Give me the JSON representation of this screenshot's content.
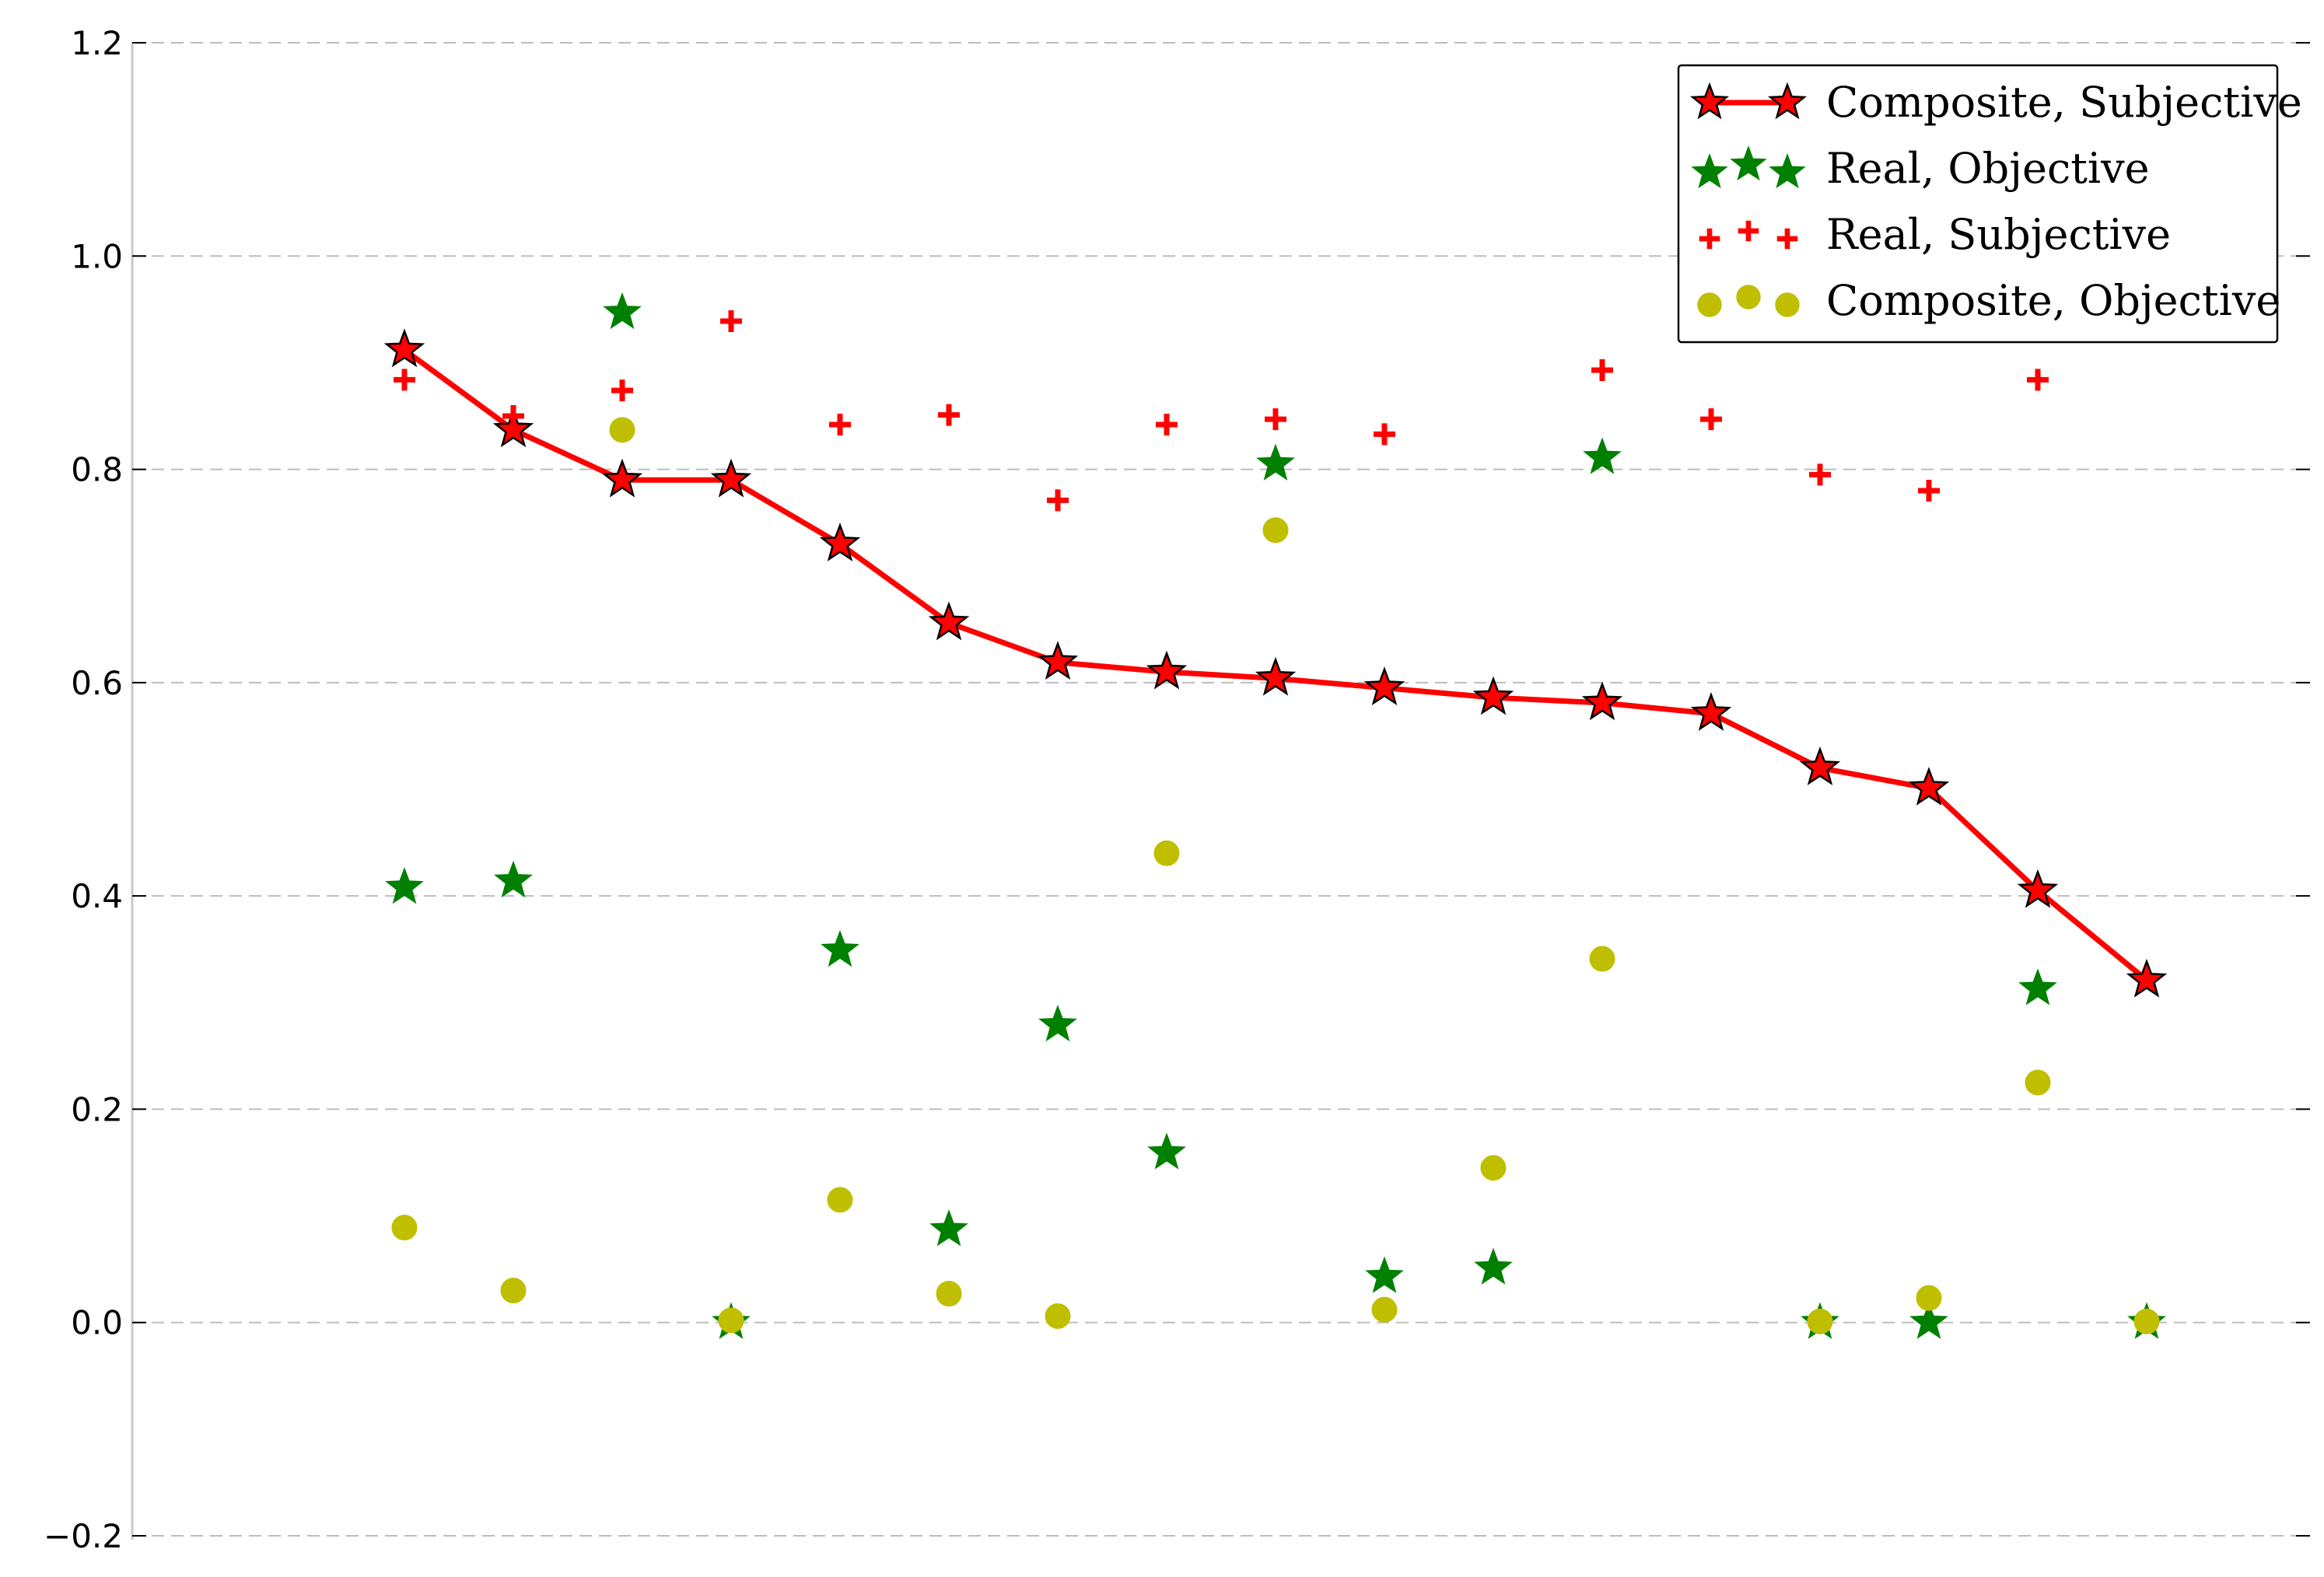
{
  "chart_data": {
    "type": "line",
    "title": "",
    "xlabel": "",
    "ylabel": "",
    "ylim": [
      -0.2,
      1.2
    ],
    "yticks": [
      -0.2,
      0.0,
      0.2,
      0.4,
      0.6,
      0.8,
      1.0,
      1.2
    ],
    "ytick_labels": [
      "−0.2",
      "0.0",
      "0.2",
      "0.4",
      "0.6",
      "0.8",
      "1.0",
      "1.2"
    ],
    "xlim": [
      -2.5,
      17.5
    ],
    "grid": "horizontal dashed",
    "legend_position": "top-right",
    "x": [
      0,
      1,
      2,
      3,
      4,
      5,
      6,
      7,
      8,
      9,
      10,
      11,
      12,
      13,
      14,
      15,
      16
    ],
    "series": [
      {
        "name": "Composite, Subjective",
        "style": "line-star",
        "color": "#ff0000",
        "values": [
          0.912,
          0.837,
          0.79,
          0.79,
          0.73,
          0.656,
          0.619,
          0.61,
          0.604,
          0.595,
          0.586,
          0.581,
          0.571,
          0.52,
          0.501,
          0.405,
          0.321
        ]
      },
      {
        "name": "Real, Objective",
        "style": "star",
        "color": "#008000",
        "values": [
          0.408,
          0.414,
          0.947,
          0.0,
          0.349,
          0.087,
          0.279,
          0.159,
          0.805,
          0.043,
          0.051,
          0.811,
          null,
          0.0,
          0.0,
          0.313,
          0.0
        ]
      },
      {
        "name": "Real, Subjective",
        "style": "plus",
        "color": "#ff0000",
        "values": [
          0.884,
          0.85,
          0.874,
          0.939,
          0.842,
          0.851,
          0.771,
          0.842,
          0.847,
          0.833,
          null,
          0.893,
          0.847,
          0.795,
          0.78,
          0.884,
          null
        ]
      },
      {
        "name": "Composite, Objective",
        "style": "circle",
        "color": "#bfbf00",
        "values": [
          0.089,
          0.03,
          0.837,
          0.002,
          0.115,
          0.027,
          0.006,
          0.44,
          0.743,
          0.012,
          0.145,
          0.341,
          null,
          0.001,
          0.023,
          0.225,
          0.001
        ]
      }
    ]
  }
}
